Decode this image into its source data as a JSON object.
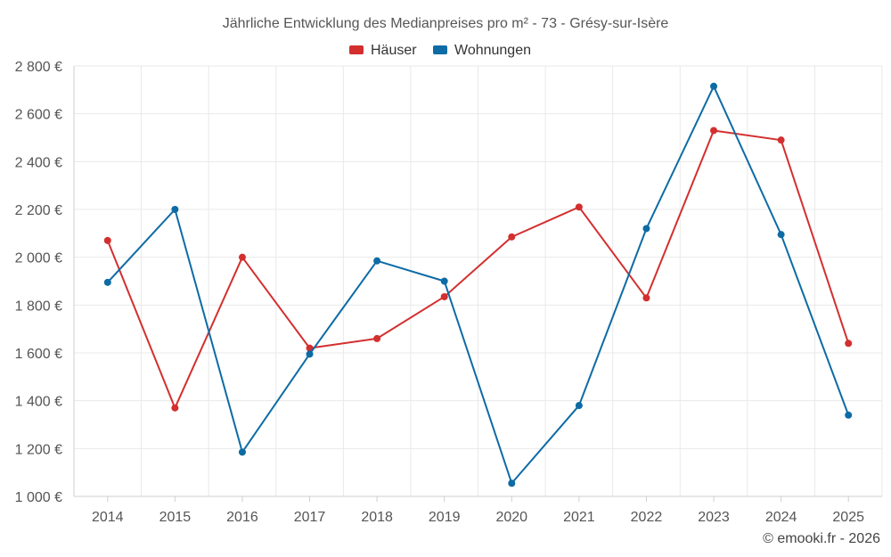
{
  "chart_data": {
    "type": "line",
    "title": "Jährliche Entwicklung des Medianpreises pro m² - 73 - Grésy-sur-Isère",
    "xlabel": "",
    "ylabel": "",
    "categories": [
      "2014",
      "2015",
      "2016",
      "2017",
      "2018",
      "2019",
      "2020",
      "2021",
      "2022",
      "2023",
      "2024",
      "2025"
    ],
    "ylim": [
      1000,
      2800
    ],
    "yticks": [
      1000,
      1200,
      1400,
      1600,
      1800,
      2000,
      2200,
      2400,
      2600,
      2800
    ],
    "ytick_labels": [
      "1 000 €",
      "1 200 €",
      "1 400 €",
      "1 600 €",
      "1 800 €",
      "2 000 €",
      "2 200 €",
      "2 400 €",
      "2 600 €",
      "2 800 €"
    ],
    "grid": true,
    "legend_position": "top-center",
    "series": [
      {
        "name": "Häuser",
        "color": "#d32f2f",
        "values": [
          2070,
          1370,
          2000,
          1620,
          1660,
          1835,
          2085,
          2210,
          1830,
          2530,
          2490,
          1640
        ]
      },
      {
        "name": "Wohnungen",
        "color": "#0d6ba5",
        "values": [
          1895,
          2200,
          1185,
          1595,
          1985,
          1900,
          1055,
          1380,
          2120,
          2715,
          2095,
          1340
        ]
      }
    ]
  },
  "credit": "© emooki.fr - 2026"
}
